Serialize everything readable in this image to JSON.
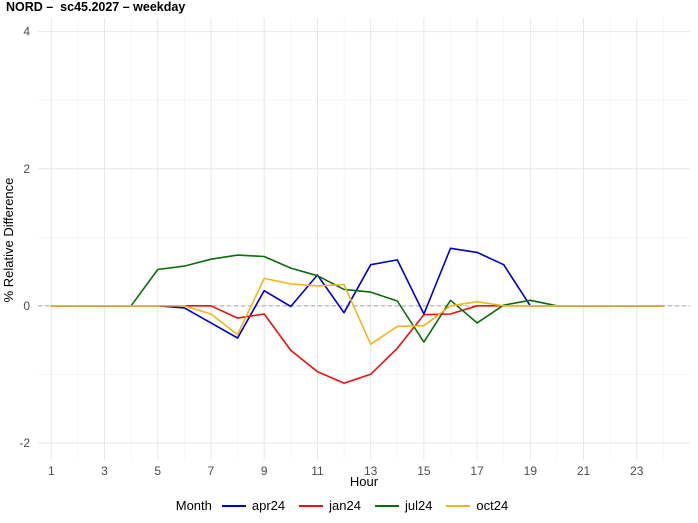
{
  "title": "NORD –  sc45.2027 – weekday",
  "chart_data": {
    "type": "line",
    "xlabel": "Hour",
    "ylabel": "% Relative Difference",
    "xlim": [
      0.5,
      25
    ],
    "ylim": [
      -2.25,
      4.2
    ],
    "x_ticks": [
      1,
      3,
      5,
      7,
      9,
      11,
      13,
      15,
      17,
      19,
      21,
      23
    ],
    "y_ticks": [
      -2,
      0,
      2,
      4
    ],
    "grid": true,
    "reference_line": 0,
    "legend_title": "Month",
    "legend_position": "bottom",
    "x": [
      1,
      2,
      3,
      4,
      5,
      6,
      7,
      8,
      9,
      10,
      11,
      12,
      13,
      14,
      15,
      16,
      17,
      18,
      19,
      20,
      21,
      22,
      23,
      24
    ],
    "series": [
      {
        "name": "apr24",
        "color": "#0000cc",
        "values": [
          0,
          0,
          0,
          0,
          0,
          -0.03,
          -0.25,
          -0.47,
          0.22,
          -0.01,
          0.45,
          -0.1,
          0.6,
          0.67,
          -0.12,
          0.84,
          0.78,
          0.6,
          0,
          0,
          0,
          0,
          0,
          0
        ]
      },
      {
        "name": "jan24",
        "color": "#e8120c",
        "values": [
          0,
          0,
          0,
          0,
          0,
          0,
          0,
          -0.18,
          -0.12,
          -0.65,
          -0.96,
          -1.13,
          -1.0,
          -0.62,
          -0.13,
          -0.12,
          0,
          0,
          0,
          0,
          0,
          0,
          0,
          0
        ]
      },
      {
        "name": "jul24",
        "color": "#0a6e0a",
        "values": [
          0,
          0,
          0,
          0,
          0.53,
          0.58,
          0.68,
          0.74,
          0.72,
          0.55,
          0.44,
          0.24,
          0.2,
          0.07,
          -0.53,
          0.08,
          -0.25,
          0.01,
          0.08,
          0,
          0,
          0,
          0,
          0
        ]
      },
      {
        "name": "oct24",
        "color": "#f2b51b",
        "values": [
          0,
          0,
          0,
          0,
          0,
          0,
          -0.12,
          -0.42,
          0.4,
          0.32,
          0.29,
          0.31,
          -0.56,
          -0.3,
          -0.29,
          0,
          0.06,
          0,
          0,
          0,
          0,
          0,
          0,
          0
        ]
      }
    ]
  }
}
